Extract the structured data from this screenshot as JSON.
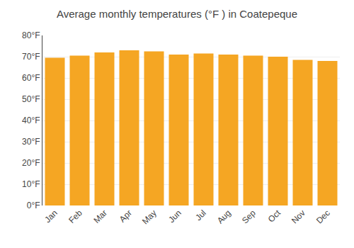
{
  "chart_data": {
    "type": "bar",
    "title": "Average monthly temperatures (°F ) in Coatepeque",
    "categories": [
      "Jan",
      "Feb",
      "Mar",
      "Apr",
      "May",
      "Jun",
      "Jul",
      "Aug",
      "Sep",
      "Oct",
      "Nov",
      "Dec"
    ],
    "values": [
      69.5,
      70.5,
      72.0,
      73.0,
      72.5,
      71.0,
      71.5,
      71.0,
      70.5,
      70.0,
      68.5,
      68.0
    ],
    "color": "#F5A623",
    "ylim": [
      0,
      80
    ],
    "yticks": [
      {
        "value": 0,
        "label": "0°F"
      },
      {
        "value": 10,
        "label": "10°F"
      },
      {
        "value": 20,
        "label": "20°F"
      },
      {
        "value": 30,
        "label": "30°F"
      },
      {
        "value": 40,
        "label": "40°F"
      },
      {
        "value": 50,
        "label": "50°F"
      },
      {
        "value": 60,
        "label": "60°F"
      },
      {
        "value": 70,
        "label": "70°F"
      },
      {
        "value": 80,
        "label": "80°F"
      }
    ],
    "grid": true
  }
}
